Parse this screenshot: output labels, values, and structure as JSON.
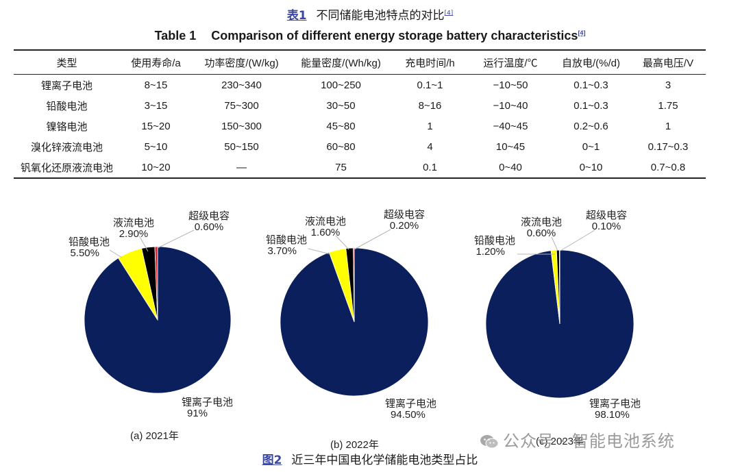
{
  "table_caption": {
    "label": "表1",
    "text": "不同储能电池特点的对比",
    "ref": "[4]"
  },
  "table_caption_en": {
    "label": "Table 1",
    "text": "Comparison of different energy storage battery characteristics",
    "ref": "[4]"
  },
  "table": {
    "headers": [
      "类型",
      "使用寿命/a",
      "功率密度/(W/kg)",
      "能量密度/(Wh/kg)",
      "充电时间/h",
      "运行温度/℃",
      "自放电/(%/d)",
      "最高电压/V"
    ],
    "rows": [
      [
        "锂离子电池",
        "8~15",
        "230~340",
        "100~250",
        "0.1~1",
        "−10~50",
        "0.1~0.3",
        "3"
      ],
      [
        "铅酸电池",
        "3~15",
        "75~300",
        "30~50",
        "8~16",
        "−10~40",
        "0.1~0.3",
        "1.75"
      ],
      [
        "镍铬电池",
        "15~20",
        "150~300",
        "45~80",
        "1",
        "−40~45",
        "0.2~0.6",
        "1"
      ],
      [
        "溴化锌液流电池",
        "5~10",
        "50~150",
        "60~80",
        "4",
        "10~45",
        "0~1",
        "0.17~0.3"
      ],
      [
        "钒氧化还原液流电池",
        "10~20",
        "—",
        "75",
        "0.1",
        "0~40",
        "0~10",
        "0.7~0.8"
      ]
    ]
  },
  "colors": {
    "lithium": "#0b1f5c",
    "lead_acid": "#ffff00",
    "flow": "#000000",
    "supercap": "#e0202a",
    "caption_accent": "#3a46a0"
  },
  "chart_data": [
    {
      "type": "pie",
      "caption": "(a) 2021年",
      "slices": [
        {
          "label": "锂离子电池",
          "value": 91,
          "value_text": "91%",
          "color": "#0b1f5c"
        },
        {
          "label": "铅酸电池",
          "value": 5.5,
          "value_text": "5.50%",
          "color": "#ffff00"
        },
        {
          "label": "液流电池",
          "value": 2.9,
          "value_text": "2.90%",
          "color": "#000000"
        },
        {
          "label": "超级电容",
          "value": 0.6,
          "value_text": "0.60%",
          "color": "#e0202a"
        }
      ]
    },
    {
      "type": "pie",
      "caption": "(b) 2022年",
      "slices": [
        {
          "label": "锂离子电池",
          "value": 94.5,
          "value_text": "94.50%",
          "color": "#0b1f5c"
        },
        {
          "label": "铅酸电池",
          "value": 3.7,
          "value_text": "3.70%",
          "color": "#ffff00"
        },
        {
          "label": "液流电池",
          "value": 1.6,
          "value_text": "1.60%",
          "color": "#000000"
        },
        {
          "label": "超级电容",
          "value": 0.2,
          "value_text": "0.20%",
          "color": "#e0202a"
        }
      ]
    },
    {
      "type": "pie",
      "caption": "(c) 2023年",
      "slices": [
        {
          "label": "锂离子电池",
          "value": 98.1,
          "value_text": "98.10%",
          "color": "#0b1f5c"
        },
        {
          "label": "铅酸电池",
          "value": 1.2,
          "value_text": "1.20%",
          "color": "#ffff00"
        },
        {
          "label": "液流电池",
          "value": 0.6,
          "value_text": "0.60%",
          "color": "#000000"
        },
        {
          "label": "超级电容",
          "value": 0.1,
          "value_text": "0.10%",
          "color": "#e0202a"
        }
      ]
    }
  ],
  "figure_caption": {
    "label": "图2",
    "text": "近三年中国电化学储能电池类型占比"
  },
  "watermark": {
    "icon": "wechat-icon",
    "text": "公众号 · 智能电池系统"
  }
}
